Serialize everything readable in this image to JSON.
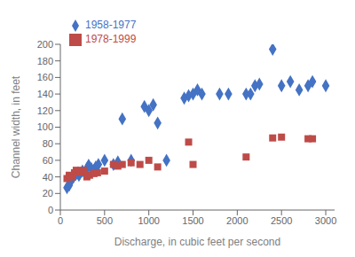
{
  "chart_data": {
    "type": "scatter",
    "x_label": "Discharge, in cubic feet per second",
    "y_label": "Channel width, in feet",
    "xlim": [
      0,
      3100
    ],
    "ylim": [
      0,
      200
    ],
    "xticks": [
      0,
      500,
      1000,
      1500,
      2000,
      2500,
      3000
    ],
    "yticks": [
      0,
      20,
      40,
      60,
      80,
      100,
      120,
      140,
      160,
      180,
      200
    ],
    "grid": false,
    "legend": "upper left",
    "series": [
      {
        "name": "1958-1977",
        "color": "#4472C4",
        "marker": "diamond",
        "x": [
          75,
          100,
          120,
          150,
          175,
          200,
          210,
          220,
          250,
          280,
          300,
          320,
          350,
          380,
          400,
          430,
          500,
          600,
          650,
          700,
          800,
          950,
          1000,
          1050,
          1100,
          1200,
          1400,
          1450,
          1500,
          1550,
          1600,
          1800,
          1900,
          2100,
          2150,
          2200,
          2250,
          2400,
          2500,
          2600,
          2700,
          2800,
          2850,
          3000
        ],
        "values": [
          27,
          30,
          35,
          40,
          43,
          45,
          42,
          44,
          47,
          45,
          50,
          54,
          50,
          48,
          52,
          55,
          60,
          55,
          58,
          110,
          60,
          125,
          120,
          127,
          105,
          60,
          135,
          138,
          140,
          145,
          140,
          140,
          140,
          140,
          140,
          150,
          152,
          194,
          150,
          155,
          145,
          150,
          155,
          150
        ]
      },
      {
        "name": "1978-1999",
        "color": "#BE4B48",
        "marker": "square",
        "x": [
          75,
          100,
          130,
          160,
          180,
          200,
          230,
          260,
          300,
          330,
          380,
          420,
          500,
          600,
          650,
          700,
          800,
          900,
          1000,
          1100,
          1450,
          1500,
          2100,
          2400,
          2500,
          2800,
          2850
        ],
        "values": [
          38,
          42,
          40,
          45,
          48,
          46,
          46,
          48,
          40,
          42,
          44,
          45,
          47,
          55,
          53,
          55,
          57,
          55,
          60,
          52,
          82,
          55,
          64,
          87,
          88,
          86,
          86
        ]
      }
    ]
  }
}
